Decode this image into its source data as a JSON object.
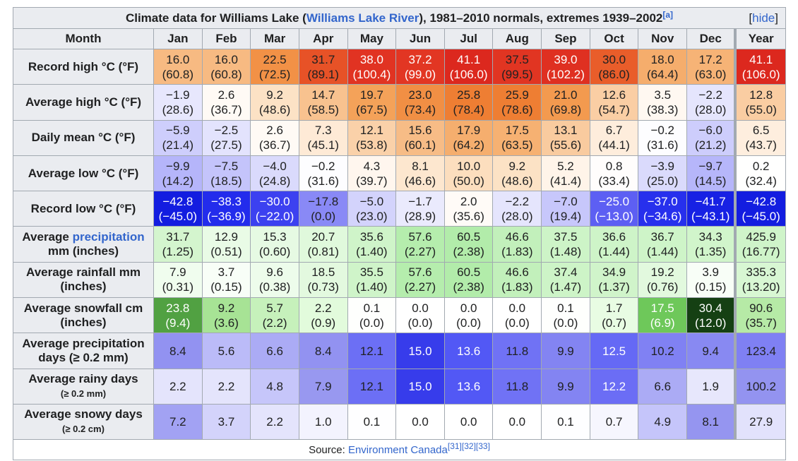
{
  "title": {
    "pre": "Climate data for Williams Lake (",
    "link": "Williams Lake River",
    "post": "), 1981–2010 normals, extremes 1939–2002",
    "note": "[a]",
    "hide_open": "[",
    "hide": "hide",
    "hide_close": "]"
  },
  "months": [
    "Month",
    "Jan",
    "Feb",
    "Mar",
    "Apr",
    "May",
    "Jun",
    "Jul",
    "Aug",
    "Sep",
    "Oct",
    "Nov",
    "Dec",
    "Year"
  ],
  "rows": [
    {
      "label": "Record high °C (°F)",
      "type": "temp",
      "white": 37,
      "v": [
        "16.0",
        "16.0",
        "22.5",
        "31.7",
        "38.0",
        "37.2",
        "41.1",
        "37.5",
        "39.0",
        "30.0",
        "18.0",
        "17.2",
        "41.1"
      ],
      "f": [
        "(60.8)",
        "(60.8)",
        "(72.5)",
        "(89.1)",
        "(100.4)",
        "(99.0)",
        "(106.0)",
        "(99.5)",
        "(102.2)",
        "(86.0)",
        "(64.4)",
        "(63.0)",
        "(106.0)"
      ]
    },
    {
      "label": "Average high °C (°F)",
      "type": "temp",
      "v": [
        "−1.9",
        "2.6",
        "9.2",
        "14.7",
        "19.7",
        "23.0",
        "25.8",
        "25.9",
        "21.0",
        "12.6",
        "3.5",
        "−2.2",
        "12.8"
      ],
      "f": [
        "(28.6)",
        "(36.7)",
        "(48.6)",
        "(58.5)",
        "(67.5)",
        "(73.4)",
        "(78.4)",
        "(78.6)",
        "(69.8)",
        "(54.7)",
        "(38.3)",
        "(28.0)",
        "(55.0)"
      ]
    },
    {
      "label": "Daily mean °C (°F)",
      "type": "temp",
      "v": [
        "−5.9",
        "−2.5",
        "2.6",
        "7.3",
        "12.1",
        "15.6",
        "17.9",
        "17.5",
        "13.1",
        "6.7",
        "−0.2",
        "−6.0",
        "6.5"
      ],
      "f": [
        "(21.4)",
        "(27.5)",
        "(36.7)",
        "(45.1)",
        "(53.8)",
        "(60.1)",
        "(64.2)",
        "(63.5)",
        "(55.6)",
        "(44.1)",
        "(31.6)",
        "(21.2)",
        "(43.7)"
      ]
    },
    {
      "label": "Average low °C (°F)",
      "type": "temp",
      "v": [
        "−9.9",
        "−7.5",
        "−4.0",
        "−0.2",
        "4.3",
        "8.1",
        "10.0",
        "9.2",
        "5.2",
        "0.8",
        "−3.9",
        "−9.7",
        "0.2"
      ],
      "f": [
        "(14.2)",
        "(18.5)",
        "(24.8)",
        "(31.6)",
        "(39.7)",
        "(46.6)",
        "(50.0)",
        "(48.6)",
        "(41.4)",
        "(33.4)",
        "(25.0)",
        "(14.5)",
        "(32.4)"
      ]
    },
    {
      "label": "Record low °C (°F)",
      "type": "temp",
      "v": [
        "−42.8",
        "−38.3",
        "−30.0",
        "−17.8",
        "−5.0",
        "−1.7",
        "2.0",
        "−2.2",
        "−7.0",
        "−25.0",
        "−37.0",
        "−41.7",
        "−42.8"
      ],
      "f": [
        "(−45.0)",
        "(−36.9)",
        "(−22.0)",
        "(0.0)",
        "(23.0)",
        "(28.9)",
        "(35.6)",
        "(28.0)",
        "(19.4)",
        "(−13.0)",
        "(−34.6)",
        "(−43.1)",
        "(−45.0)"
      ]
    },
    {
      "label": "Average ",
      "label_link": "precipitation",
      "label2": "mm (inches)",
      "type": "precip",
      "v": [
        "31.7",
        "12.9",
        "15.3",
        "20.7",
        "35.6",
        "57.6",
        "60.5",
        "46.6",
        "37.5",
        "36.6",
        "36.7",
        "34.3",
        "425.9"
      ],
      "f": [
        "(1.25)",
        "(0.51)",
        "(0.60)",
        "(0.81)",
        "(1.40)",
        "(2.27)",
        "(2.38)",
        "(1.83)",
        "(1.48)",
        "(1.44)",
        "(1.44)",
        "(1.35)",
        "(16.77)"
      ]
    },
    {
      "label": "Average rainfall mm",
      "label2": "(inches)",
      "type": "precip",
      "v": [
        "7.9",
        "3.7",
        "9.6",
        "18.5",
        "35.5",
        "57.6",
        "60.5",
        "46.6",
        "37.4",
        "34.9",
        "19.2",
        "3.9",
        "335.3"
      ],
      "f": [
        "(0.31)",
        "(0.15)",
        "(0.38)",
        "(0.73)",
        "(1.40)",
        "(2.27)",
        "(2.38)",
        "(1.83)",
        "(1.47)",
        "(1.37)",
        "(0.76)",
        "(0.15)",
        "(13.20)"
      ]
    },
    {
      "label": "Average snowfall cm",
      "label2": "(inches)",
      "type": "snow",
      "v": [
        "23.8",
        "9.2",
        "5.7",
        "2.2",
        "0.1",
        "0.0",
        "0.0",
        "0.0",
        "0.1",
        "1.7",
        "17.5",
        "30.4",
        "90.6"
      ],
      "f": [
        "(9.4)",
        "(3.6)",
        "(2.2)",
        "(0.9)",
        "(0.0)",
        "(0.0)",
        "(0.0)",
        "(0.0)",
        "(0.0)",
        "(0.7)",
        "(6.9)",
        "(12.0)",
        "(35.7)"
      ]
    },
    {
      "label": "Average precipitation",
      "label2": "days (≥ 0.2 mm)",
      "type": "days",
      "v": [
        "8.4",
        "5.6",
        "6.6",
        "8.4",
        "12.1",
        "15.0",
        "13.6",
        "11.8",
        "9.9",
        "12.5",
        "10.2",
        "9.4",
        "123.4"
      ]
    },
    {
      "label": "Average rainy days",
      "label2": "(≥ 0.2 mm)",
      "small": true,
      "type": "days",
      "v": [
        "2.2",
        "2.2",
        "4.8",
        "7.9",
        "12.1",
        "15.0",
        "13.6",
        "11.8",
        "9.9",
        "12.2",
        "6.6",
        "1.9",
        "100.2"
      ]
    },
    {
      "label": "Average snowy days",
      "label2": "(≥ 0.2 cm)",
      "small": true,
      "type": "days",
      "v": [
        "7.2",
        "3.7",
        "2.2",
        "1.0",
        "0.1",
        "0.0",
        "0.0",
        "0.0",
        "0.1",
        "0.7",
        "4.9",
        "8.1",
        "27.9"
      ]
    }
  ],
  "source": {
    "label": "Source: ",
    "link": "Environment Canada",
    "refs": "[31][32][33]"
  }
}
